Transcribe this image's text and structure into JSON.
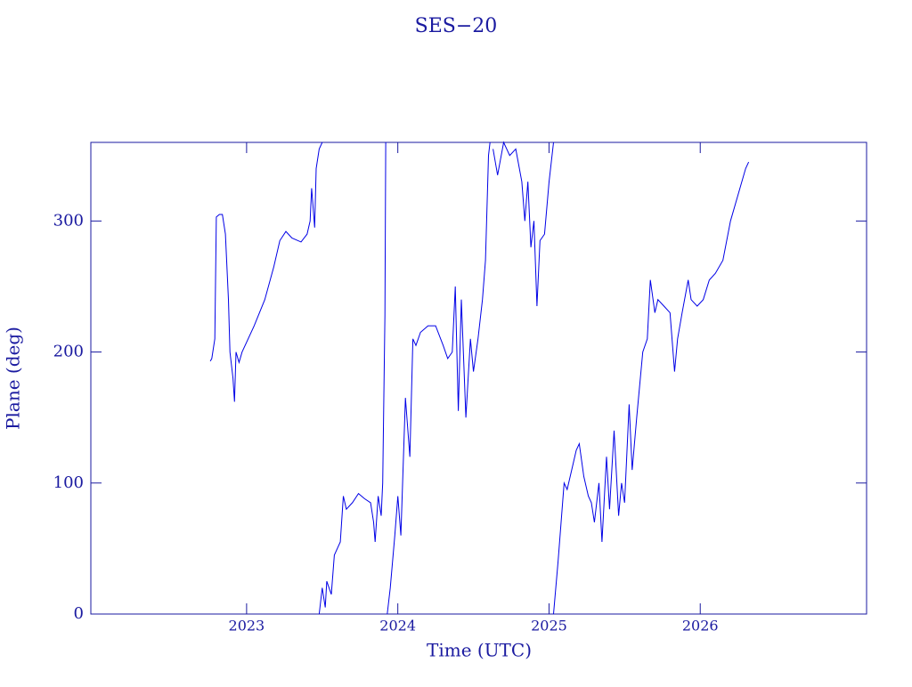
{
  "chart_data": {
    "type": "line",
    "title": "SES−20",
    "xlabel": "Time (UTC)",
    "ylabel": "Plane (deg)",
    "xlim": [
      2021.97,
      2027.1
    ],
    "xticks": [
      2023,
      2024,
      2025,
      2026
    ],
    "ylim": [
      0,
      360
    ],
    "yticks": [
      0,
      100,
      200,
      300
    ],
    "series": [
      {
        "color": "#0000e6",
        "x": [
          2022.76,
          2022.77,
          2022.79,
          2022.8,
          2022.82,
          2022.84,
          2022.86,
          2022.88,
          2022.89,
          2022.91,
          2022.92,
          2022.93,
          2022.95,
          2022.97,
          2023.05,
          2023.12,
          2023.18,
          2023.22,
          2023.26,
          2023.3,
          2023.36,
          2023.4,
          2023.42,
          2023.43,
          2023.45,
          2023.46,
          2023.48,
          2023.5,
          2023.5,
          2023.48,
          2023.5,
          2023.52,
          2023.53,
          2023.56,
          2023.58,
          2023.62,
          2023.64,
          2023.66,
          2023.7,
          2023.74,
          2023.78,
          2023.82,
          2023.84,
          2023.85,
          2023.87,
          2023.89,
          2023.9,
          2023.915,
          2023.92,
          2023.92,
          2023.93,
          2023.95,
          2023.98,
          2024.0,
          2024.02,
          2024.05,
          2024.08,
          2024.1,
          2024.12,
          2024.15,
          2024.2,
          2024.25,
          2024.3,
          2024.33,
          2024.36,
          2024.38,
          2024.4,
          2024.42,
          2024.45,
          2024.48,
          2024.5,
          2024.53,
          2024.56,
          2024.58,
          2024.6,
          2024.61,
          2024.61,
          2024.63,
          2024.66,
          2024.7,
          2024.74,
          2024.78,
          2024.82,
          2024.84,
          2024.86,
          2024.88,
          2024.9,
          2024.92,
          2024.94,
          2024.97,
          2025.0,
          2025.03,
          2025.03,
          2025.03,
          2025.06,
          2025.08,
          2025.1,
          2025.12,
          2025.15,
          2025.18,
          2025.2,
          2025.23,
          2025.26,
          2025.28,
          2025.3,
          2025.33,
          2025.35,
          2025.38,
          2025.4,
          2025.43,
          2025.46,
          2025.48,
          2025.5,
          2025.53,
          2025.55,
          2025.58,
          2025.62,
          2025.65,
          2025.67,
          2025.7,
          2025.72,
          2025.76,
          2025.8,
          2025.83,
          2025.85,
          2025.88,
          2025.92,
          2025.94,
          2025.98,
          2026.02,
          2026.06,
          2026.1,
          2026.15,
          2026.2,
          2026.25,
          2026.3,
          2026.32
        ],
        "values": [
          193,
          195,
          210,
          303,
          305,
          305,
          290,
          240,
          200,
          180,
          162,
          200,
          192,
          200,
          220,
          240,
          265,
          285,
          292,
          287,
          284,
          290,
          300,
          325,
          295,
          340,
          355,
          360,
          null,
          0,
          20,
          5,
          25,
          15,
          45,
          55,
          90,
          80,
          85,
          92,
          88,
          85,
          70,
          55,
          90,
          75,
          100,
          228,
          360,
          null,
          0,
          20,
          60,
          90,
          60,
          165,
          120,
          210,
          205,
          215,
          220,
          220,
          205,
          195,
          200,
          250,
          155,
          240,
          150,
          210,
          185,
          210,
          240,
          270,
          350,
          360,
          null,
          355,
          335,
          360,
          350,
          355,
          330,
          300,
          330,
          280,
          300,
          235,
          285,
          290,
          330,
          360,
          null,
          0,
          40,
          70,
          100,
          95,
          110,
          125,
          130,
          105,
          90,
          85,
          70,
          100,
          55,
          120,
          80,
          140,
          75,
          100,
          85,
          160,
          110,
          150,
          200,
          210,
          255,
          230,
          240,
          235,
          230,
          185,
          210,
          230,
          255,
          240,
          235,
          240,
          255,
          260,
          270,
          300,
          320,
          340,
          345
        ]
      }
    ]
  }
}
